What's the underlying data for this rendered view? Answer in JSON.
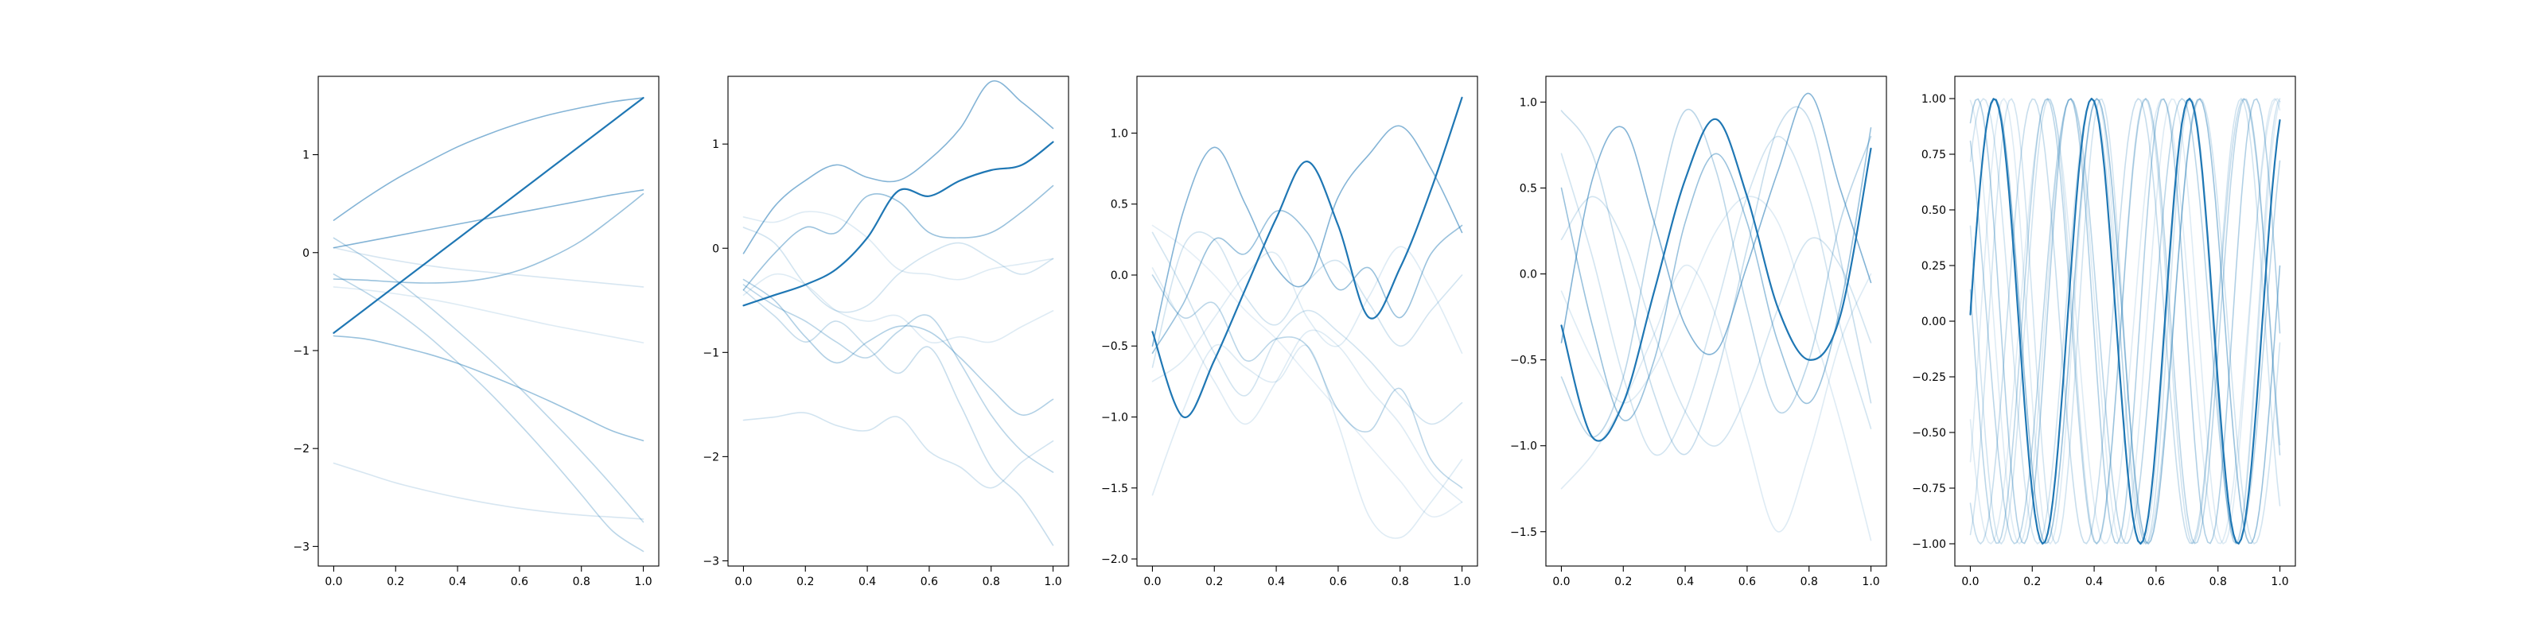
{
  "accent_color": "#1f77b4",
  "chart_data": [
    {
      "type": "line",
      "x_range": [
        0,
        1
      ],
      "xlim": [
        -0.05,
        1.05
      ],
      "ylim": [
        -3.2,
        1.8
      ],
      "xticks": [
        "0.0",
        "0.2",
        "0.4",
        "0.6",
        "0.8",
        "1.0"
      ],
      "yticks": [
        "-3",
        "-2",
        "-1",
        "0",
        "1"
      ],
      "ytick_values": [
        -3,
        -2,
        -1,
        0,
        1
      ],
      "x": [
        0,
        0.1,
        0.2,
        0.3,
        0.4,
        0.5,
        0.6,
        0.7,
        0.8,
        0.9,
        1.0
      ],
      "series": [
        {
          "values": [
            -0.27,
            -0.28,
            -0.3,
            -0.31,
            -0.3,
            -0.26,
            -0.18,
            -0.05,
            0.12,
            0.35,
            0.6
          ],
          "opacity": 0.45
        },
        {
          "values": [
            0.15,
            -0.05,
            -0.28,
            -0.53,
            -0.8,
            -1.08,
            -1.38,
            -1.7,
            -2.03,
            -2.38,
            -2.75
          ],
          "opacity": 0.3
        },
        {
          "values": [
            -0.22,
            -0.4,
            -0.6,
            -0.84,
            -1.12,
            -1.42,
            -1.75,
            -2.1,
            -2.47,
            -2.84,
            -3.05
          ],
          "opacity": 0.3
        },
        {
          "values": [
            -2.15,
            -2.25,
            -2.35,
            -2.43,
            -2.5,
            -2.56,
            -2.61,
            -2.65,
            -2.68,
            -2.7,
            -2.72
          ],
          "opacity": 0.18
        },
        {
          "values": [
            0.05,
            -0.02,
            -0.08,
            -0.13,
            -0.17,
            -0.2,
            -0.23,
            -0.26,
            -0.29,
            -0.32,
            -0.35
          ],
          "opacity": 0.18
        },
        {
          "values": [
            -0.85,
            -0.88,
            -0.95,
            -1.03,
            -1.13,
            -1.25,
            -1.38,
            -1.52,
            -1.67,
            -1.82,
            -1.92
          ],
          "opacity": 0.45
        },
        {
          "values": [
            0.33,
            0.55,
            0.75,
            0.92,
            1.08,
            1.21,
            1.32,
            1.41,
            1.48,
            1.54,
            1.58
          ],
          "opacity": 0.55
        },
        {
          "values": [
            0.05,
            0.11,
            0.17,
            0.23,
            0.29,
            0.35,
            0.41,
            0.47,
            0.53,
            0.59,
            0.64
          ],
          "opacity": 0.55
        },
        {
          "values": [
            -0.35,
            -0.38,
            -0.42,
            -0.47,
            -0.53,
            -0.6,
            -0.67,
            -0.74,
            -0.8,
            -0.86,
            -0.92
          ],
          "opacity": 0.15
        },
        {
          "values": [
            -0.82,
            -0.58,
            -0.34,
            -0.1,
            0.14,
            0.38,
            0.62,
            0.86,
            1.1,
            1.34,
            1.58
          ],
          "opacity": 1.0
        }
      ]
    },
    {
      "type": "line",
      "x_range": [
        0,
        1
      ],
      "xlim": [
        -0.05,
        1.05
      ],
      "ylim": [
        -3.05,
        1.65
      ],
      "xticks": [
        "0.0",
        "0.2",
        "0.4",
        "0.6",
        "0.8",
        "1.0"
      ],
      "yticks": [
        "-3",
        "-2",
        "-1",
        "0",
        "1"
      ],
      "ytick_values": [
        -3,
        -2,
        -1,
        0,
        1
      ],
      "x": [
        0,
        0.1,
        0.2,
        0.3,
        0.4,
        0.5,
        0.6,
        0.7,
        0.8,
        0.9,
        1.0
      ],
      "series": [
        {
          "values": [
            -0.05,
            0.4,
            0.65,
            0.8,
            0.68,
            0.65,
            0.85,
            1.15,
            1.6,
            1.4,
            1.15
          ],
          "opacity": 0.55
        },
        {
          "values": [
            -0.4,
            -0.05,
            0.2,
            0.15,
            0.5,
            0.45,
            0.15,
            0.1,
            0.15,
            0.35,
            0.6
          ],
          "opacity": 0.45
        },
        {
          "values": [
            0.2,
            0.05,
            -0.35,
            -0.6,
            -0.55,
            -0.25,
            -0.05,
            0.05,
            -0.1,
            -0.25,
            -0.1
          ],
          "opacity": 0.2
        },
        {
          "values": [
            0.3,
            0.25,
            0.35,
            0.3,
            0.1,
            -0.2,
            -0.25,
            -0.3,
            -0.2,
            -0.15,
            -0.1
          ],
          "opacity": 0.15
        },
        {
          "values": [
            -0.3,
            -0.5,
            -0.85,
            -1.1,
            -0.9,
            -0.75,
            -0.8,
            -1.05,
            -1.35,
            -1.6,
            -1.45
          ],
          "opacity": 0.35
        },
        {
          "values": [
            -0.35,
            -0.55,
            -0.7,
            -0.9,
            -1.05,
            -0.8,
            -0.65,
            -1.1,
            -1.6,
            -1.95,
            -2.15
          ],
          "opacity": 0.3
        },
        {
          "values": [
            -0.4,
            -0.65,
            -0.9,
            -0.7,
            -0.95,
            -1.2,
            -0.95,
            -1.5,
            -2.1,
            -2.4,
            -2.85
          ],
          "opacity": 0.25
        },
        {
          "values": [
            -1.65,
            -1.62,
            -1.58,
            -1.7,
            -1.75,
            -1.62,
            -1.95,
            -2.1,
            -2.3,
            -2.05,
            -1.85
          ],
          "opacity": 0.2
        },
        {
          "values": [
            -0.45,
            -0.25,
            -0.35,
            -0.6,
            -0.7,
            -0.65,
            -0.9,
            -0.85,
            -0.9,
            -0.75,
            -0.6
          ],
          "opacity": 0.15
        },
        {
          "values": [
            -0.55,
            -0.45,
            -0.35,
            -0.2,
            0.1,
            0.55,
            0.5,
            0.65,
            0.75,
            0.8,
            1.02
          ],
          "opacity": 1.0
        }
      ]
    },
    {
      "type": "line",
      "x_range": [
        0,
        1
      ],
      "xlim": [
        -0.05,
        1.05
      ],
      "ylim": [
        -2.05,
        1.4
      ],
      "xticks": [
        "0.0",
        "0.2",
        "0.4",
        "0.6",
        "0.8",
        "1.0"
      ],
      "yticks": [
        "-2.0",
        "-1.5",
        "-1.0",
        "-0.5",
        "0.0",
        "0.5",
        "1.0"
      ],
      "ytick_values": [
        -2.0,
        -1.5,
        -1.0,
        -0.5,
        0.0,
        0.5,
        1.0
      ],
      "x": [
        0,
        0.1,
        0.2,
        0.3,
        0.4,
        0.5,
        0.6,
        0.7,
        0.8,
        0.9,
        1.0
      ],
      "series": [
        {
          "values": [
            -0.5,
            0.45,
            0.9,
            0.5,
            0.05,
            -0.05,
            0.55,
            0.85,
            1.05,
            0.75,
            0.3
          ],
          "opacity": 0.55
        },
        {
          "values": [
            -0.55,
            -0.2,
            0.25,
            0.15,
            0.45,
            0.3,
            -0.1,
            0.05,
            -0.3,
            0.15,
            0.35
          ],
          "opacity": 0.45
        },
        {
          "values": [
            0.0,
            -0.3,
            -0.2,
            -0.6,
            -0.45,
            -0.5,
            -0.95,
            -1.1,
            -0.8,
            -1.3,
            -1.5
          ],
          "opacity": 0.3
        },
        {
          "values": [
            0.3,
            -0.1,
            -0.55,
            -0.85,
            -0.45,
            -0.25,
            -0.4,
            -0.6,
            -0.85,
            -1.05,
            -0.9
          ],
          "opacity": 0.2
        },
        {
          "values": [
            -1.55,
            -0.95,
            -0.5,
            -0.65,
            -0.75,
            -0.5,
            -1.05,
            -1.7,
            -1.85,
            -1.6,
            -1.3
          ],
          "opacity": 0.15
        },
        {
          "values": [
            0.05,
            -0.35,
            -0.75,
            -1.05,
            -0.75,
            -0.4,
            -0.5,
            -0.8,
            -1.05,
            -1.4,
            -1.6
          ],
          "opacity": 0.15
        },
        {
          "values": [
            -0.65,
            0.2,
            0.25,
            -0.15,
            -0.35,
            -0.05,
            0.1,
            -0.2,
            -0.5,
            -0.25,
            0.0
          ],
          "opacity": 0.2
        },
        {
          "values": [
            -0.75,
            -0.6,
            -0.3,
            0.0,
            0.15,
            -0.3,
            -0.5,
            -0.15,
            0.2,
            -0.1,
            -0.55
          ],
          "opacity": 0.15
        },
        {
          "values": [
            0.35,
            0.2,
            0.0,
            -0.25,
            -0.45,
            -0.7,
            -0.95,
            -1.2,
            -1.45,
            -1.7,
            -1.6
          ],
          "opacity": 0.12
        },
        {
          "values": [
            -0.4,
            -1.0,
            -0.6,
            -0.1,
            0.4,
            0.8,
            0.35,
            -0.3,
            0.05,
            0.6,
            1.25
          ],
          "opacity": 1.0
        }
      ]
    },
    {
      "type": "line",
      "x_range": [
        0,
        1
      ],
      "xlim": [
        -0.05,
        1.05
      ],
      "ylim": [
        -1.7,
        1.15
      ],
      "xticks": [
        "0.0",
        "0.2",
        "0.4",
        "0.6",
        "0.8",
        "1.0"
      ],
      "yticks": [
        "-1.5",
        "-1.0",
        "-0.5",
        "0.0",
        "0.5",
        "1.0"
      ],
      "ytick_values": [
        -1.5,
        -1.0,
        -0.5,
        0.0,
        0.5,
        1.0
      ],
      "x": [
        0,
        0.1,
        0.2,
        0.3,
        0.4,
        0.5,
        0.6,
        0.7,
        0.8,
        0.9,
        1.0
      ],
      "series": [
        {
          "values": [
            -0.4,
            0.55,
            0.85,
            0.3,
            -0.3,
            -0.45,
            0.05,
            0.6,
            1.05,
            0.5,
            -0.05
          ],
          "opacity": 0.55
        },
        {
          "values": [
            0.5,
            -0.3,
            -0.85,
            -0.5,
            0.3,
            0.7,
            0.3,
            -0.4,
            -0.75,
            -0.2,
            0.85
          ],
          "opacity": 0.45
        },
        {
          "values": [
            -0.6,
            -0.95,
            -0.6,
            0.3,
            0.95,
            0.6,
            -0.2,
            -0.8,
            -0.5,
            0.3,
            0.8
          ],
          "opacity": 0.3
        },
        {
          "values": [
            0.95,
            0.7,
            0.0,
            -0.7,
            -1.05,
            -0.6,
            0.15,
            0.85,
            0.9,
            0.1,
            -0.75
          ],
          "opacity": 0.25
        },
        {
          "values": [
            -1.25,
            -1.05,
            -0.75,
            -0.35,
            0.05,
            -0.25,
            -0.95,
            -1.5,
            -1.05,
            -0.4,
            0.0
          ],
          "opacity": 0.15
        },
        {
          "values": [
            0.2,
            0.45,
            0.2,
            -0.35,
            -0.8,
            -1.0,
            -0.7,
            -0.2,
            0.2,
            0.05,
            -0.4
          ],
          "opacity": 0.2
        },
        {
          "values": [
            -0.1,
            -0.5,
            -0.75,
            -0.55,
            -0.15,
            0.25,
            0.45,
            0.3,
            -0.25,
            -0.85,
            -1.55
          ],
          "opacity": 0.15
        },
        {
          "values": [
            0.7,
            0.1,
            -0.6,
            -1.05,
            -0.8,
            -0.2,
            0.45,
            0.8,
            0.45,
            -0.3,
            -0.9
          ],
          "opacity": 0.2
        },
        {
          "values": [
            -0.3,
            -0.95,
            -0.75,
            -0.1,
            0.55,
            0.9,
            0.45,
            -0.2,
            -0.5,
            -0.25,
            0.73
          ],
          "opacity": 1.0
        }
      ]
    },
    {
      "type": "line",
      "x_range": [
        0,
        1
      ],
      "xlim": [
        -0.05,
        1.05
      ],
      "ylim": [
        -1.1,
        1.1
      ],
      "xticks": [
        "0.0",
        "0.2",
        "0.4",
        "0.6",
        "0.8",
        "1.0"
      ],
      "yticks": [
        "-1.00",
        "-0.75",
        "-0.50",
        "-0.25",
        "0.00",
        "0.25",
        "0.50",
        "0.75",
        "1.00"
      ],
      "ytick_values": [
        -1.0,
        -0.75,
        -0.5,
        -0.25,
        0.0,
        0.25,
        0.5,
        0.75,
        1.0
      ],
      "x_range_note_free": true,
      "sine_series": [
        {
          "period": 0.33,
          "phase": 0.06,
          "opacity": 0.45
        },
        {
          "period": 0.3,
          "phase": 1.1,
          "opacity": 0.35
        },
        {
          "period": 0.36,
          "phase": 2.2,
          "opacity": 0.3
        },
        {
          "period": 0.32,
          "phase": 3.0,
          "opacity": 0.3
        },
        {
          "period": 0.34,
          "phase": 4.1,
          "opacity": 0.25
        },
        {
          "period": 0.29,
          "phase": 5.0,
          "opacity": 0.2
        },
        {
          "period": 0.35,
          "phase": 0.8,
          "opacity": 0.2
        },
        {
          "period": 0.31,
          "phase": 2.7,
          "opacity": 0.2
        },
        {
          "period": 0.37,
          "phase": 3.6,
          "opacity": 0.15
        },
        {
          "period": 0.3,
          "phase": 5.6,
          "opacity": 0.15
        },
        {
          "period": 0.33,
          "phase": 1.7,
          "opacity": 0.15
        },
        {
          "period": 0.315,
          "phase": 0.03,
          "opacity": 1.0
        }
      ]
    }
  ]
}
